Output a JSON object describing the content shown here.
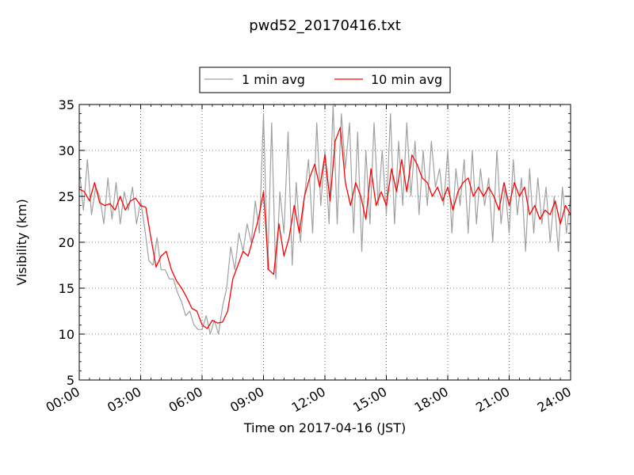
{
  "chart_data": {
    "type": "line",
    "title": "pwd52_20170416.txt",
    "xlabel": "Time on 2017-04-16 (JST)",
    "ylabel": "Visibility (km)",
    "xlim": [
      0,
      24
    ],
    "ylim": [
      5,
      35
    ],
    "x_ticks": [
      0,
      3,
      6,
      9,
      12,
      15,
      18,
      21,
      24
    ],
    "x_tick_labels": [
      "00:00",
      "03:00",
      "06:00",
      "09:00",
      "12:00",
      "15:00",
      "18:00",
      "21:00",
      "24:00"
    ],
    "y_ticks": [
      5,
      10,
      15,
      20,
      25,
      30,
      35
    ],
    "y_tick_labels": [
      "5",
      "10",
      "15",
      "20",
      "25",
      "30",
      "35"
    ],
    "grid": true,
    "legend_position": "top-center",
    "series": [
      {
        "name": "1 min avg",
        "color": "#a0a0a0",
        "x": [
          0,
          0.2,
          0.4,
          0.6,
          0.8,
          1.0,
          1.2,
          1.4,
          1.6,
          1.8,
          2.0,
          2.2,
          2.4,
          2.6,
          2.8,
          3.0,
          3.2,
          3.4,
          3.6,
          3.8,
          4.0,
          4.2,
          4.4,
          4.6,
          4.8,
          5.0,
          5.2,
          5.4,
          5.6,
          5.8,
          6.0,
          6.2,
          6.4,
          6.6,
          6.8,
          7.0,
          7.2,
          7.4,
          7.6,
          7.8,
          8.0,
          8.2,
          8.4,
          8.6,
          8.8,
          9.0,
          9.2,
          9.4,
          9.6,
          9.8,
          10.0,
          10.2,
          10.4,
          10.6,
          10.8,
          11.0,
          11.2,
          11.4,
          11.6,
          11.8,
          12.0,
          12.2,
          12.4,
          12.6,
          12.8,
          13.0,
          13.2,
          13.4,
          13.6,
          13.8,
          14.0,
          14.2,
          14.4,
          14.6,
          14.8,
          15.0,
          15.2,
          15.4,
          15.6,
          15.8,
          16.0,
          16.2,
          16.4,
          16.6,
          16.8,
          17.0,
          17.2,
          17.4,
          17.6,
          17.8,
          18.0,
          18.2,
          18.4,
          18.6,
          18.8,
          19.0,
          19.2,
          19.4,
          19.6,
          19.8,
          20.0,
          20.2,
          20.4,
          20.6,
          20.8,
          21.0,
          21.2,
          21.4,
          21.6,
          21.8,
          22.0,
          22.2,
          22.4,
          22.6,
          22.8,
          23.0,
          23.2,
          23.4,
          23.6,
          23.8,
          24.0
        ],
        "values": [
          28,
          23.5,
          29,
          23,
          26,
          25,
          22,
          27,
          22.5,
          26.5,
          22,
          25.5,
          23.5,
          26,
          22,
          24.5,
          21.5,
          18,
          17.5,
          20.5,
          17,
          17,
          16,
          16,
          14.5,
          13.5,
          12,
          12.5,
          11,
          10.5,
          10.5,
          12,
          10,
          11.5,
          10,
          13,
          15,
          19.5,
          17,
          21,
          19,
          22,
          20,
          24.5,
          21,
          34,
          17,
          33,
          16,
          25.5,
          21,
          32,
          17.5,
          26.5,
          20,
          25,
          29,
          21,
          33,
          24,
          30,
          22,
          35,
          22,
          34,
          28,
          33,
          21,
          32,
          19,
          30,
          22,
          33,
          24,
          30,
          23,
          34,
          22,
          31,
          24,
          33,
          25,
          31,
          23,
          30,
          24,
          31,
          26,
          28,
          24,
          30,
          21,
          28,
          24,
          29,
          21,
          30,
          22,
          28,
          24,
          27,
          20,
          30,
          22,
          26,
          21,
          29,
          23,
          27,
          19,
          28,
          21,
          27,
          22,
          26,
          20,
          25,
          19,
          26,
          21,
          25
        ]
      },
      {
        "name": "10 min avg",
        "color": "#ff0000",
        "x": [
          0,
          0.25,
          0.5,
          0.75,
          1.0,
          1.25,
          1.5,
          1.75,
          2.0,
          2.25,
          2.5,
          2.75,
          3.0,
          3.25,
          3.5,
          3.75,
          4.0,
          4.25,
          4.5,
          4.75,
          5.0,
          5.25,
          5.5,
          5.75,
          6.0,
          6.25,
          6.5,
          6.75,
          7.0,
          7.25,
          7.5,
          7.75,
          8.0,
          8.25,
          8.5,
          8.75,
          9.0,
          9.25,
          9.5,
          9.75,
          10.0,
          10.25,
          10.5,
          10.75,
          11.0,
          11.25,
          11.5,
          11.75,
          12.0,
          12.25,
          12.5,
          12.75,
          13.0,
          13.25,
          13.5,
          13.75,
          14.0,
          14.25,
          14.5,
          14.75,
          15.0,
          15.25,
          15.5,
          15.75,
          16.0,
          16.25,
          16.5,
          16.75,
          17.0,
          17.25,
          17.5,
          17.75,
          18.0,
          18.25,
          18.5,
          18.75,
          19.0,
          19.25,
          19.5,
          19.75,
          20.0,
          20.25,
          20.5,
          20.75,
          21.0,
          21.25,
          21.5,
          21.75,
          22.0,
          22.25,
          22.5,
          22.75,
          23.0,
          23.25,
          23.5,
          23.75,
          24.0
        ],
        "values": [
          25.8,
          25.5,
          24.5,
          26.5,
          24.3,
          24.0,
          24.2,
          23.5,
          25.0,
          23.5,
          24.5,
          24.8,
          24.0,
          23.8,
          20.5,
          17.3,
          18.5,
          19.0,
          17.0,
          15.8,
          15.0,
          14.0,
          12.8,
          12.5,
          11.0,
          10.6,
          11.5,
          11.2,
          11.3,
          12.5,
          16.0,
          17.5,
          19.0,
          18.5,
          20.5,
          22.5,
          25.5,
          17.0,
          16.5,
          22.0,
          18.5,
          20.5,
          24.0,
          21.0,
          25.0,
          27.0,
          28.5,
          26.0,
          29.5,
          24.5,
          31.0,
          32.5,
          26.5,
          24.0,
          26.5,
          25.0,
          22.5,
          28.0,
          24.0,
          25.5,
          24.0,
          28.0,
          25.5,
          29.0,
          25.5,
          29.5,
          28.5,
          27.0,
          26.5,
          25.0,
          26.0,
          24.5,
          26.0,
          23.5,
          25.5,
          26.5,
          27.0,
          25.0,
          26.0,
          25.0,
          26.0,
          25.0,
          23.5,
          26.5,
          24.0,
          26.5,
          25.0,
          26.0,
          23.0,
          24.0,
          22.5,
          23.5,
          23.0,
          24.5,
          22.0,
          24.0,
          23.0
        ]
      }
    ]
  }
}
